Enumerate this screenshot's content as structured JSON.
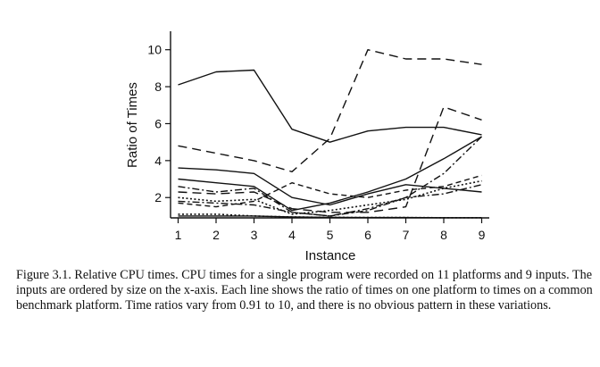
{
  "chart_data": {
    "type": "line",
    "title": "",
    "xlabel": "Instance",
    "ylabel": "Ratio of Times",
    "x": [
      1,
      2,
      3,
      4,
      5,
      6,
      7,
      8,
      9
    ],
    "xticks": [
      "1",
      "2",
      "3",
      "4",
      "5",
      "6",
      "7",
      "8",
      "9"
    ],
    "yticks": [
      "2",
      "4",
      "6",
      "8",
      "10"
    ],
    "xlim": [
      0.8,
      9.2
    ],
    "ylim": [
      0.9,
      11
    ],
    "grid": false,
    "series": [
      {
        "values": [
          8.1,
          8.8,
          8.9,
          5.7,
          5.0,
          5.6,
          5.8,
          5.8,
          5.4
        ],
        "dash": "solid"
      },
      {
        "values": [
          4.8,
          4.4,
          4.0,
          3.4,
          5.2,
          10.0,
          9.5,
          9.5,
          9.2
        ],
        "dash": "longdash"
      },
      {
        "values": [
          3.6,
          3.5,
          3.3,
          2.0,
          1.6,
          2.2,
          2.7,
          2.5,
          2.3
        ],
        "dash": "solid"
      },
      {
        "values": [
          3.0,
          2.8,
          2.6,
          1.3,
          1.7,
          2.3,
          3.0,
          4.1,
          5.3
        ],
        "dash": "solid"
      },
      {
        "values": [
          2.6,
          2.3,
          2.5,
          1.2,
          1.0,
          1.3,
          2.0,
          3.3,
          5.3
        ],
        "dash": "dashdot"
      },
      {
        "values": [
          2.3,
          2.2,
          2.3,
          1.4,
          1.2,
          1.2,
          1.5,
          6.9,
          6.2
        ],
        "dash": "longdash"
      },
      {
        "values": [
          1.7,
          1.5,
          1.8,
          2.8,
          2.2,
          2.0,
          2.4,
          2.6,
          3.2
        ],
        "dash": "dashed"
      },
      {
        "values": [
          2.0,
          1.8,
          1.9,
          1.1,
          1.3,
          1.6,
          1.9,
          2.5,
          2.9
        ],
        "dash": "dotted"
      },
      {
        "values": [
          1.8,
          1.7,
          1.6,
          1.2,
          1.0,
          1.4,
          2.0,
          2.2,
          2.7
        ],
        "dash": "dashdot"
      },
      {
        "values": [
          1.1,
          1.1,
          1.0,
          0.95,
          0.93,
          0.92,
          0.92,
          0.91,
          0.91
        ],
        "dash": "dotted"
      },
      {
        "values": [
          1.0,
          1.0,
          1.0,
          0.95,
          0.93,
          0.92,
          0.92,
          0.91,
          0.91
        ],
        "dash": "solid"
      }
    ]
  },
  "caption": "Figure 3.1.  Relative CPU times. CPU times for a single program were recorded on 11 platforms and 9 inputs. The inputs are ordered by size on the x-axis. Each line shows the ratio of times on one platform to times on a common benchmark platform. Time ratios vary from 0.91 to 10, and there is no obvious pattern in these variations."
}
